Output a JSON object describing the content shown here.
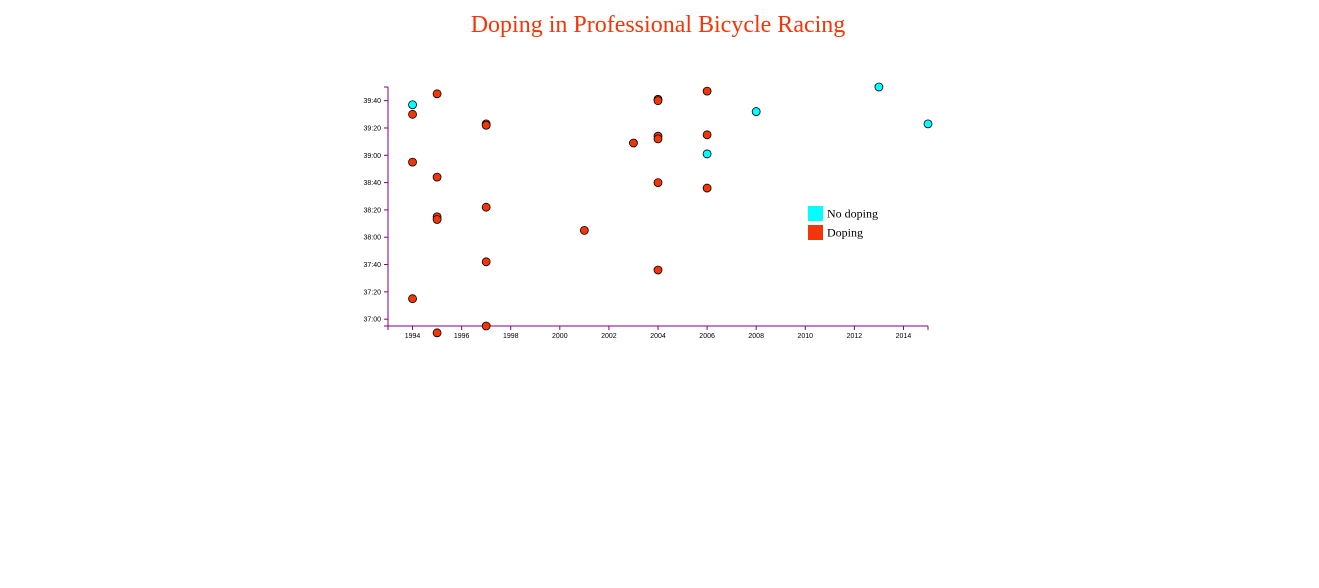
{
  "chart_data": {
    "type": "scatter",
    "title": "Doping in Professional Bicycle Racing",
    "xlabel": "",
    "ylabel": "",
    "x_ticks": [
      "1994",
      "1996",
      "1998",
      "2000",
      "2002",
      "2004",
      "2006",
      "2008",
      "2010",
      "2012",
      "2014"
    ],
    "y_ticks": [
      "37:00",
      "37:20",
      "37:40",
      "38:00",
      "38:20",
      "38:40",
      "39:00",
      "39:20",
      "39:40"
    ],
    "xlim": [
      1993,
      2015
    ],
    "ylim_seconds": [
      2215,
      2390
    ],
    "y_unit": "minutes:seconds",
    "grid": false,
    "legend_position": "right",
    "legend": [
      {
        "label": "No doping",
        "color": "#00FFFF"
      },
      {
        "label": "Doping",
        "color": "#F23608"
      }
    ],
    "points": [
      {
        "x": 1994,
        "y": "39:37",
        "doping": false
      },
      {
        "x": 1994,
        "y": "39:30",
        "doping": true
      },
      {
        "x": 1994,
        "y": "38:55",
        "doping": true
      },
      {
        "x": 1994,
        "y": "37:15",
        "doping": true
      },
      {
        "x": 1995,
        "y": "39:45",
        "doping": true
      },
      {
        "x": 1995,
        "y": "38:44",
        "doping": true
      },
      {
        "x": 1995,
        "y": "38:15",
        "doping": true
      },
      {
        "x": 1995,
        "y": "38:13",
        "doping": true
      },
      {
        "x": 1995,
        "y": "36:50",
        "doping": true
      },
      {
        "x": 1997,
        "y": "39:23",
        "doping": true
      },
      {
        "x": 1997,
        "y": "39:22",
        "doping": true
      },
      {
        "x": 1997,
        "y": "38:22",
        "doping": true
      },
      {
        "x": 1997,
        "y": "37:42",
        "doping": true
      },
      {
        "x": 1997,
        "y": "36:55",
        "doping": true
      },
      {
        "x": 2001,
        "y": "38:05",
        "doping": true
      },
      {
        "x": 2003,
        "y": "39:09",
        "doping": true
      },
      {
        "x": 2004,
        "y": "39:41",
        "doping": true
      },
      {
        "x": 2004,
        "y": "39:40",
        "doping": true
      },
      {
        "x": 2004,
        "y": "39:14",
        "doping": true
      },
      {
        "x": 2004,
        "y": "39:12",
        "doping": true
      },
      {
        "x": 2004,
        "y": "38:40",
        "doping": true
      },
      {
        "x": 2004,
        "y": "37:36",
        "doping": true
      },
      {
        "x": 2006,
        "y": "39:47",
        "doping": true
      },
      {
        "x": 2006,
        "y": "39:15",
        "doping": true
      },
      {
        "x": 2006,
        "y": "39:01",
        "doping": false
      },
      {
        "x": 2006,
        "y": "38:36",
        "doping": true
      },
      {
        "x": 2008,
        "y": "39:32",
        "doping": false
      },
      {
        "x": 2013,
        "y": "39:50",
        "doping": false
      },
      {
        "x": 2015,
        "y": "39:23",
        "doping": false
      }
    ]
  }
}
